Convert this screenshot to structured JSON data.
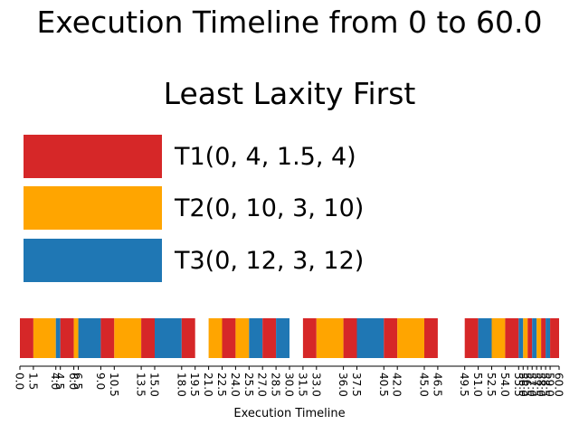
{
  "title": "Execution Timeline from 0 to 60.0",
  "subtitle": "Least Laxity First",
  "colors": {
    "T1": "#d62728",
    "T2": "#ffa500",
    "T3": "#1f77b4"
  },
  "legend": [
    {
      "task": "T1",
      "label": "T1(0, 4, 1.5, 4)"
    },
    {
      "task": "T2",
      "label": "T2(0, 10, 3, 10)"
    },
    {
      "task": "T3",
      "label": "T3(0, 12, 3, 12)"
    }
  ],
  "chart_data": {
    "type": "gantt",
    "xlabel": "Execution Timeline",
    "xlim": [
      0,
      60.0
    ],
    "segments": [
      {
        "task": "T1",
        "start": 0.0,
        "end": 1.5
      },
      {
        "task": "T2",
        "start": 1.5,
        "end": 4.0
      },
      {
        "task": "T3",
        "start": 4.0,
        "end": 4.5
      },
      {
        "task": "T1",
        "start": 4.5,
        "end": 6.0
      },
      {
        "task": "T2",
        "start": 6.0,
        "end": 6.5
      },
      {
        "task": "T3",
        "start": 6.5,
        "end": 9.0
      },
      {
        "task": "T1",
        "start": 9.0,
        "end": 10.5
      },
      {
        "task": "T2",
        "start": 10.5,
        "end": 13.5
      },
      {
        "task": "T1",
        "start": 13.5,
        "end": 15.0
      },
      {
        "task": "T3",
        "start": 15.0,
        "end": 18.0
      },
      {
        "task": "T1",
        "start": 18.0,
        "end": 19.5
      },
      {
        "task": "T2",
        "start": 21.0,
        "end": 22.5
      },
      {
        "task": "T1",
        "start": 22.5,
        "end": 24.0
      },
      {
        "task": "T2",
        "start": 24.0,
        "end": 25.5
      },
      {
        "task": "T3",
        "start": 25.5,
        "end": 27.0
      },
      {
        "task": "T1",
        "start": 27.0,
        "end": 28.5
      },
      {
        "task": "T3",
        "start": 28.5,
        "end": 30.0
      },
      {
        "task": "T1",
        "start": 31.5,
        "end": 33.0
      },
      {
        "task": "T2",
        "start": 33.0,
        "end": 36.0
      },
      {
        "task": "T1",
        "start": 36.0,
        "end": 37.5
      },
      {
        "task": "T3",
        "start": 37.5,
        "end": 40.5
      },
      {
        "task": "T1",
        "start": 40.5,
        "end": 42.0
      },
      {
        "task": "T2",
        "start": 42.0,
        "end": 45.0
      },
      {
        "task": "T1",
        "start": 45.0,
        "end": 46.5
      },
      {
        "task": "T1",
        "start": 49.5,
        "end": 51.0
      },
      {
        "task": "T3",
        "start": 51.0,
        "end": 52.5
      },
      {
        "task": "T2",
        "start": 52.5,
        "end": 54.0
      },
      {
        "task": "T1",
        "start": 54.0,
        "end": 55.5
      },
      {
        "task": "T3",
        "start": 55.5,
        "end": 56.0
      },
      {
        "task": "T2",
        "start": 56.0,
        "end": 56.5
      },
      {
        "task": "T1",
        "start": 56.5,
        "end": 57.0
      },
      {
        "task": "T3",
        "start": 57.0,
        "end": 57.5
      },
      {
        "task": "T2",
        "start": 57.5,
        "end": 58.0
      },
      {
        "task": "T1",
        "start": 58.0,
        "end": 58.5
      },
      {
        "task": "T3",
        "start": 58.5,
        "end": 59.0
      },
      {
        "task": "T1",
        "start": 59.0,
        "end": 60.0
      }
    ],
    "xticks": [
      "0.0",
      "1.5",
      "4.0",
      "4.5",
      "6.0",
      "6.5",
      "9.0",
      "10.5",
      "13.5",
      "15.0",
      "18.0",
      "19.5",
      "21.0",
      "22.5",
      "24.0",
      "25.5",
      "27.0",
      "28.5",
      "30.0",
      "31.5",
      "33.0",
      "36.0",
      "37.5",
      "40.5",
      "42.0",
      "45.0",
      "46.5",
      "49.5",
      "51.0",
      "52.5",
      "54.0",
      "55.5",
      "56.0",
      "56.5",
      "57.0",
      "57.5",
      "58.0",
      "58.5",
      "59.0",
      "60.0"
    ],
    "grid": false
  }
}
